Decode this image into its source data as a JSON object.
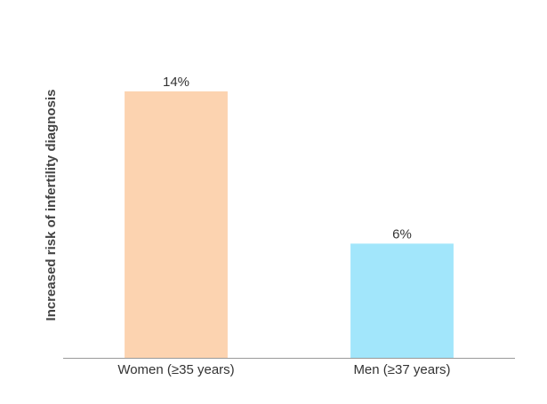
{
  "chart_data": {
    "type": "bar",
    "y_label": "Increased risk of infertility diagnosis",
    "categories": [
      "Women (≥35 years)",
      "Men (≥37 years)"
    ],
    "values": [
      14,
      6
    ],
    "value_labels": [
      "14%",
      "6%"
    ],
    "colors": [
      "#fcd3b0",
      "#a2e6fb"
    ],
    "ylim": [
      0,
      16
    ],
    "grid": false
  }
}
